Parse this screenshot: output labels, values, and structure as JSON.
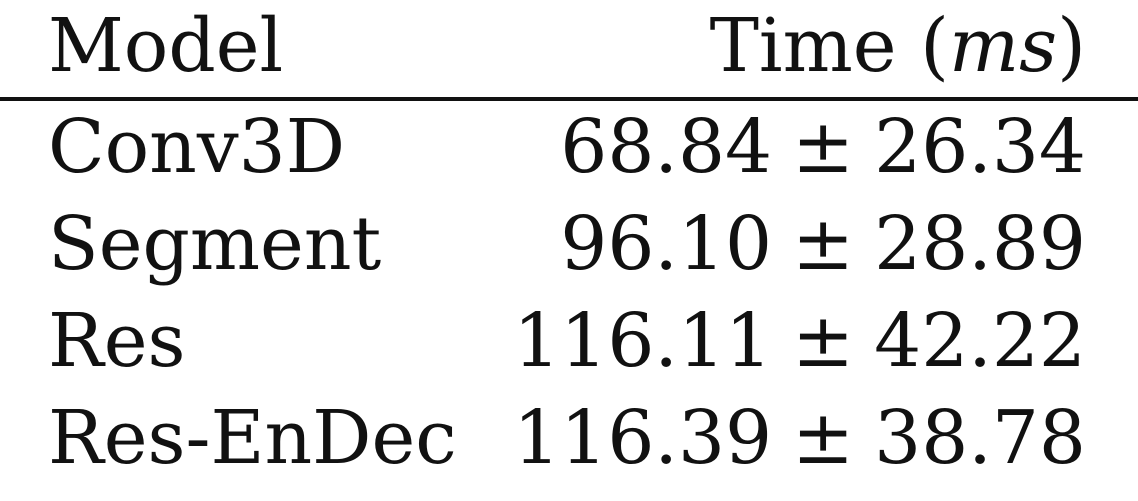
{
  "table": {
    "headers": {
      "model": "Model",
      "time_prefix": "Time",
      "time_open": "(",
      "time_unit": "ms",
      "time_close": ")"
    },
    "rows": [
      {
        "model": "Conv3D",
        "mean": "68.84",
        "pm": "±",
        "err": "26.34"
      },
      {
        "model": "Segment",
        "mean": "96.10",
        "pm": "±",
        "err": "28.89"
      },
      {
        "model": "Res",
        "mean": "116.11",
        "pm": "±",
        "err": "42.22"
      },
      {
        "model": "Res-EnDec",
        "mean": "116.39",
        "pm": "±",
        "err": "38.78"
      }
    ]
  }
}
